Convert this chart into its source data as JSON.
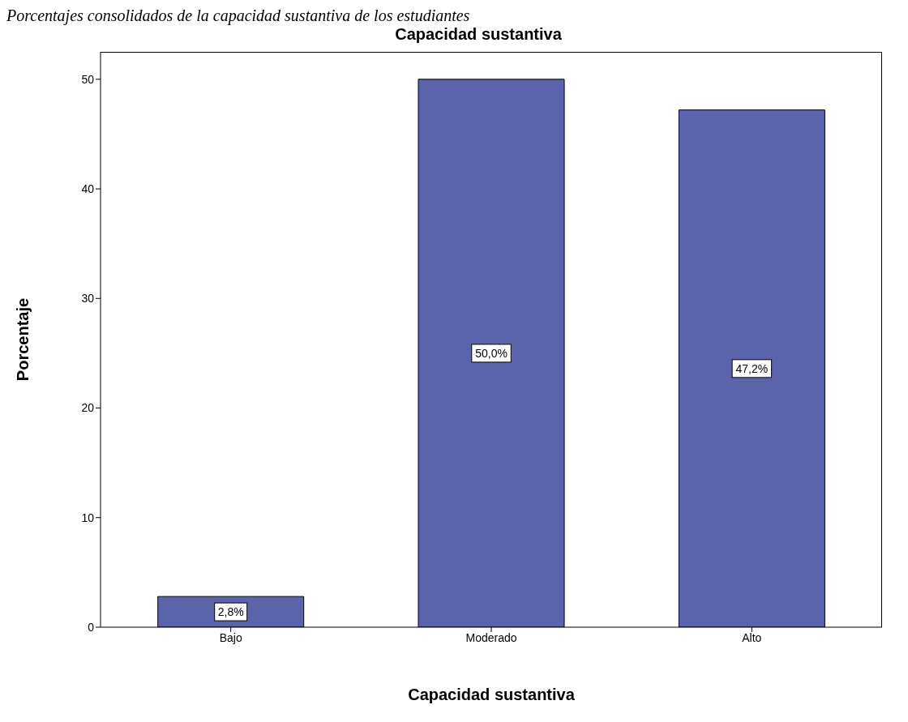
{
  "chart_data": {
    "type": "bar",
    "title": "Capacidad sustantiva",
    "annotations": [
      "Porcentajes consolidados de la capacidad sustantiva de los estudiantes"
    ],
    "xlabel": "Capacidad sustantiva",
    "ylabel": "Porcentaje",
    "categories": [
      "Bajo",
      "Moderado",
      "Alto"
    ],
    "values": [
      2.8,
      50.0,
      47.2
    ],
    "value_labels": [
      "2,8%",
      "50,0%",
      "47,2%"
    ],
    "color": "#5b64ab",
    "ylim": [
      0,
      52.5
    ],
    "yticks": [
      0,
      10,
      20,
      30,
      40,
      50
    ],
    "grid": false
  }
}
